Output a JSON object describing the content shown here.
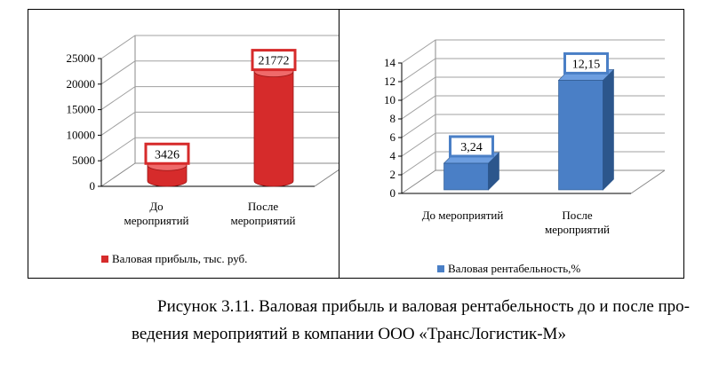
{
  "colors": {
    "left_series": "#d62b2b",
    "left_series_dark": "#9a1515",
    "left_series_light": "#ef6a6a",
    "right_series": "#4a7fc6",
    "right_series_dark": "#2c568c",
    "right_series_light": "#6d9ee0"
  },
  "chart_data": [
    {
      "type": "bar",
      "style": "3d-cylinder",
      "categories": [
        "До мероприятий",
        "После мероприятий"
      ],
      "category_lines": [
        [
          "До",
          "мероприятий"
        ],
        [
          "После",
          "мероприятий"
        ]
      ],
      "series": [
        {
          "name": "Валовая прибыль, тыс. руб.",
          "values": [
            3426,
            21772
          ]
        }
      ],
      "data_labels": [
        "3426",
        "21772"
      ],
      "yticks": [
        "0",
        "5000",
        "10000",
        "15000",
        "20000",
        "25000"
      ],
      "ylim": [
        0,
        25000
      ],
      "grid": true,
      "legend": "bottom"
    },
    {
      "type": "bar",
      "style": "3d-box",
      "categories": [
        "До мероприятий",
        "После мероприятий"
      ],
      "category_lines": [
        [
          "До мероприятий"
        ],
        [
          "После",
          "мероприятий"
        ]
      ],
      "series": [
        {
          "name": "Валовая рентабельность,%",
          "values": [
            3.24,
            12.15
          ]
        }
      ],
      "data_labels": [
        "3,24",
        "12,15"
      ],
      "yticks": [
        "0",
        "2",
        "4",
        "6",
        "8",
        "10",
        "12",
        "14"
      ],
      "ylim": [
        0,
        14
      ],
      "grid": true,
      "legend": "bottom"
    }
  ],
  "caption": {
    "line1": "Рисунок 3.11. Валовая прибыль и валовая рентабельность до и после про-",
    "line2": "ведения мероприятий в компании ООО «ТрансЛогистик-М»"
  }
}
